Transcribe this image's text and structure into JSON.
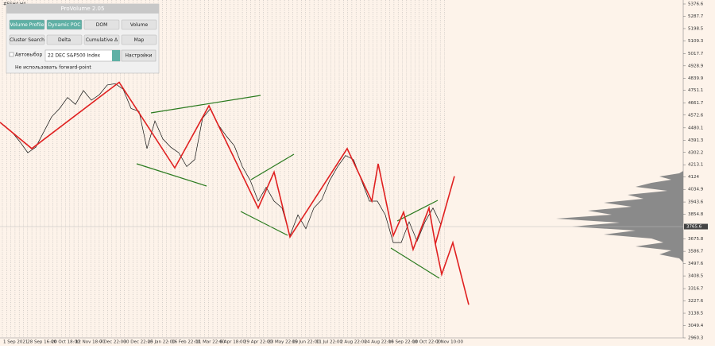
{
  "symbol": "#ESH4,H4",
  "panel": {
    "title": "ProVolume 2.05",
    "buttons": [
      "Volume Profile",
      "Dynamic POC",
      "DOM",
      "Volume",
      "Cluster Search",
      "Delta",
      "Cumulative Δ",
      "Map"
    ],
    "checkbox": "Автовыбор",
    "dropdown": "22 DEC S&P500 Index",
    "settings": "Настройки",
    "note": "Не использовать forward-point"
  },
  "chart_data": {
    "type": "line",
    "price_ticks": [
      5376.6,
      5287.7,
      5198.5,
      5109.3,
      5017.7,
      4928.9,
      4839.9,
      4751.1,
      4661.7,
      4572.6,
      4480.1,
      4391.3,
      4302.2,
      4213.1,
      4124.0,
      4034.9,
      3943.6,
      3854.8,
      3675.8,
      3586.7,
      3497.6,
      3408.5,
      3316.7,
      3227.6,
      3138.5,
      3049.4,
      2960.3
    ],
    "current_price": 3765.6,
    "dates": [
      "1 Sep 2021",
      "28 Sep 16:00",
      "20 Oct 18:00",
      "12 Nov 18:00",
      "7 Dec 22:00",
      "30 Dec 22:00",
      "25 Jan 22:00",
      "16 Feb 22:00",
      "11 Mar 22:00",
      "6 Apr 18:00",
      "29 Apr 22:00",
      "23 May 22:00",
      "15 Jun 22:00",
      "11 Jul 22:00",
      "2 Aug 22:00",
      "24 Aug 22:00",
      "16 Sep 22:00",
      "10 Oct 22:00",
      "2 Nov 10:00"
    ],
    "price": [
      4500,
      4450,
      4380,
      4300,
      4340,
      4450,
      4560,
      4620,
      4700,
      4650,
      4750,
      4680,
      4720,
      4790,
      4800,
      4760,
      4620,
      4600,
      4330,
      4530,
      4400,
      4340,
      4300,
      4200,
      4250,
      4550,
      4620,
      4500,
      4420,
      4350,
      4200,
      4100,
      3950,
      4050,
      3950,
      3900,
      3700,
      3850,
      3750,
      3900,
      3960,
      4100,
      4200,
      4280,
      4250,
      4100,
      3950,
      3950,
      3850,
      3650,
      3650,
      3800,
      3660,
      3800,
      3900,
      3780
    ],
    "zigzag": [
      4520,
      4330,
      4810,
      4190,
      4640,
      3900,
      4160,
      3690,
      4330,
      3950,
      4220,
      3700,
      3870,
      3600,
      3900,
      3640,
      4130
    ],
    "forecast": [
      3640,
      3420,
      3650,
      3200
    ]
  }
}
